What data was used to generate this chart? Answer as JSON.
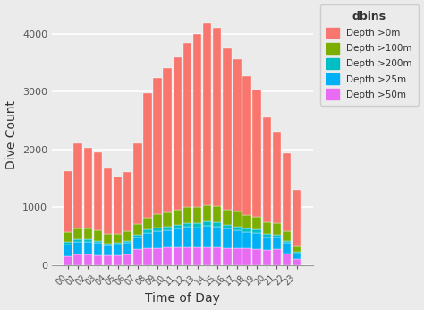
{
  "title": "",
  "xlabel": "Time of Day",
  "ylabel": "Dive Count",
  "legend_title": "dbins",
  "background_color": "#EBEBEB",
  "grid_color": "#FFFFFF",
  "hours": [
    "00",
    "01",
    "02",
    "03",
    "04",
    "05",
    "06",
    "07",
    "08",
    "09",
    "10",
    "11",
    "12",
    "13",
    "14",
    "15",
    "16",
    "17",
    "18",
    "19",
    "20",
    "21",
    "22",
    "23"
  ],
  "colors": {
    "Depth >0m": "#F8766D",
    "Depth >100m": "#7CAE00",
    "Depth >200m": "#00BFC4",
    "Depth >25m": "#00B0F6",
    "Depth >50m": "#E76BF3"
  },
  "data": {
    "Depth >50m": [
      155,
      185,
      180,
      170,
      170,
      175,
      190,
      280,
      290,
      300,
      305,
      310,
      315,
      305,
      315,
      310,
      300,
      290,
      290,
      285,
      270,
      280,
      205,
      105
    ],
    "Depth >25m": [
      200,
      215,
      220,
      210,
      170,
      175,
      190,
      200,
      270,
      290,
      300,
      320,
      345,
      350,
      365,
      360,
      335,
      315,
      285,
      270,
      215,
      195,
      175,
      98
    ],
    "Depth >200m": [
      42,
      52,
      52,
      42,
      36,
      36,
      42,
      47,
      57,
      63,
      67,
      68,
      73,
      73,
      77,
      73,
      68,
      67,
      63,
      57,
      52,
      52,
      42,
      26
    ],
    "Depth >100m": [
      170,
      190,
      185,
      175,
      165,
      160,
      170,
      185,
      210,
      230,
      245,
      256,
      270,
      275,
      285,
      280,
      265,
      250,
      235,
      220,
      200,
      195,
      165,
      93
    ],
    "Depth >0m": [
      1060,
      1460,
      1390,
      1360,
      1130,
      990,
      1020,
      1390,
      2150,
      2360,
      2490,
      2640,
      2840,
      3000,
      3140,
      3090,
      2790,
      2650,
      2400,
      2200,
      1820,
      1580,
      1350,
      980
    ]
  },
  "ylim": [
    0,
    4500
  ],
  "yticks": [
    0,
    1000,
    2000,
    3000,
    4000
  ],
  "bar_width": 0.85
}
